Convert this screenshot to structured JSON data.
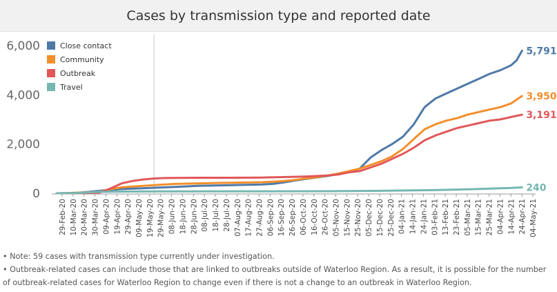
{
  "chart_data": {
    "type": "line",
    "title": "Cases by transmission type and reported date",
    "xlabel": "",
    "ylabel": "",
    "ylim": [
      0,
      6000
    ],
    "y_ticks": [
      {
        "value": 0,
        "label": "0"
      },
      {
        "value": 2000,
        "label": "2,000"
      },
      {
        "value": 4000,
        "label": "4,000"
      },
      {
        "value": 6000,
        "label": "6,000"
      }
    ],
    "x_tick_labels": [
      "29-Feb-20",
      "10-Mar-20",
      "20-Mar-20",
      "30-Mar-20",
      "09-Apr-20",
      "19-Apr-20",
      "29-Apr-20",
      "09-May-20",
      "19-May-20",
      "29-May-20",
      "08-Jun-20",
      "18-Jun-20",
      "28-Jun-20",
      "08-Jul-20",
      "18-Jul-20",
      "28-Jul-20",
      "07-Aug-20",
      "17-Aug-20",
      "27-Aug-20",
      "06-Sep-20",
      "16-Sep-20",
      "26-Sep-20",
      "06-Oct-20",
      "16-Oct-20",
      "26-Oct-20",
      "05-Nov-20",
      "15-Nov-20",
      "25-Nov-20",
      "05-Dec-20",
      "15-Dec-20",
      "25-Dec-20",
      "04-Jan-21",
      "14-Jan-21",
      "24-Jan-21",
      "03-Feb-21",
      "13-Feb-21",
      "23-Feb-21",
      "05-Mar-21",
      "15-Mar-21",
      "25-Mar-21",
      "04-Apr-21",
      "14-Apr-21",
      "24-Apr-21",
      "04-May-21"
    ],
    "reference_line_day": 90,
    "x_domain_days": [
      0,
      440
    ],
    "series": [
      {
        "name": "Close contact",
        "color": "#4e79a7",
        "end_label": "5,791",
        "points": [
          [
            0,
            0
          ],
          [
            10,
            5
          ],
          [
            20,
            25
          ],
          [
            30,
            60
          ],
          [
            40,
            100
          ],
          [
            50,
            140
          ],
          [
            60,
            170
          ],
          [
            70,
            190
          ],
          [
            80,
            205
          ],
          [
            90,
            225
          ],
          [
            110,
            260
          ],
          [
            130,
            300
          ],
          [
            160,
            330
          ],
          [
            190,
            360
          ],
          [
            200,
            380
          ],
          [
            210,
            440
          ],
          [
            220,
            520
          ],
          [
            230,
            580
          ],
          [
            240,
            640
          ],
          [
            250,
            700
          ],
          [
            260,
            780
          ],
          [
            270,
            880
          ],
          [
            280,
            1000
          ],
          [
            290,
            1450
          ],
          [
            300,
            1750
          ],
          [
            310,
            2000
          ],
          [
            320,
            2300
          ],
          [
            330,
            2800
          ],
          [
            340,
            3500
          ],
          [
            350,
            3850
          ],
          [
            360,
            4050
          ],
          [
            370,
            4250
          ],
          [
            380,
            4450
          ],
          [
            390,
            4650
          ],
          [
            400,
            4850
          ],
          [
            410,
            5000
          ],
          [
            420,
            5200
          ],
          [
            425,
            5400
          ],
          [
            430,
            5791
          ]
        ]
      },
      {
        "name": "Community",
        "color": "#f28e2b",
        "end_label": "3,950",
        "points": [
          [
            0,
            0
          ],
          [
            10,
            5
          ],
          [
            20,
            20
          ],
          [
            30,
            40
          ],
          [
            40,
            60
          ],
          [
            50,
            170
          ],
          [
            60,
            240
          ],
          [
            70,
            275
          ],
          [
            80,
            300
          ],
          [
            90,
            330
          ],
          [
            100,
            360
          ],
          [
            110,
            380
          ],
          [
            130,
            400
          ],
          [
            150,
            420
          ],
          [
            170,
            435
          ],
          [
            190,
            450
          ],
          [
            200,
            470
          ],
          [
            210,
            500
          ],
          [
            220,
            540
          ],
          [
            230,
            600
          ],
          [
            240,
            650
          ],
          [
            250,
            720
          ],
          [
            260,
            800
          ],
          [
            270,
            900
          ],
          [
            280,
            1000
          ],
          [
            290,
            1150
          ],
          [
            300,
            1300
          ],
          [
            310,
            1500
          ],
          [
            320,
            1800
          ],
          [
            330,
            2200
          ],
          [
            340,
            2600
          ],
          [
            350,
            2800
          ],
          [
            360,
            2950
          ],
          [
            370,
            3050
          ],
          [
            380,
            3200
          ],
          [
            390,
            3300
          ],
          [
            400,
            3400
          ],
          [
            410,
            3500
          ],
          [
            420,
            3650
          ],
          [
            430,
            3950
          ]
        ]
      },
      {
        "name": "Outbreak",
        "color": "#e15759",
        "end_label": "3,191",
        "points": [
          [
            0,
            0
          ],
          [
            30,
            10
          ],
          [
            40,
            30
          ],
          [
            50,
            200
          ],
          [
            60,
            400
          ],
          [
            70,
            500
          ],
          [
            80,
            560
          ],
          [
            90,
            600
          ],
          [
            100,
            620
          ],
          [
            130,
            630
          ],
          [
            160,
            630
          ],
          [
            190,
            640
          ],
          [
            210,
            660
          ],
          [
            230,
            680
          ],
          [
            250,
            720
          ],
          [
            260,
            760
          ],
          [
            270,
            850
          ],
          [
            280,
            900
          ],
          [
            290,
            1050
          ],
          [
            300,
            1200
          ],
          [
            310,
            1400
          ],
          [
            320,
            1600
          ],
          [
            330,
            1850
          ],
          [
            340,
            2150
          ],
          [
            350,
            2350
          ],
          [
            360,
            2500
          ],
          [
            370,
            2650
          ],
          [
            380,
            2750
          ],
          [
            390,
            2850
          ],
          [
            400,
            2950
          ],
          [
            410,
            3000
          ],
          [
            420,
            3100
          ],
          [
            430,
            3191
          ]
        ]
      },
      {
        "name": "Travel",
        "color": "#76b7b2",
        "end_label": "240",
        "points": [
          [
            0,
            0
          ],
          [
            20,
            10
          ],
          [
            30,
            40
          ],
          [
            40,
            60
          ],
          [
            60,
            70
          ],
          [
            100,
            75
          ],
          [
            200,
            80
          ],
          [
            250,
            85
          ],
          [
            300,
            100
          ],
          [
            350,
            130
          ],
          [
            380,
            160
          ],
          [
            400,
            190
          ],
          [
            420,
            215
          ],
          [
            430,
            240
          ]
        ]
      }
    ]
  },
  "notes": [
    "• Note: 59 cases with transmission type currently under investigation.",
    "• Outbreak-related cases can include those that are linked to outbreaks outside of Waterloo Region. As a result, it is possible for the number",
    "of outbreak-related cases for Waterloo Region to change even if there is not a change to an outbreak in Waterloo Region."
  ]
}
